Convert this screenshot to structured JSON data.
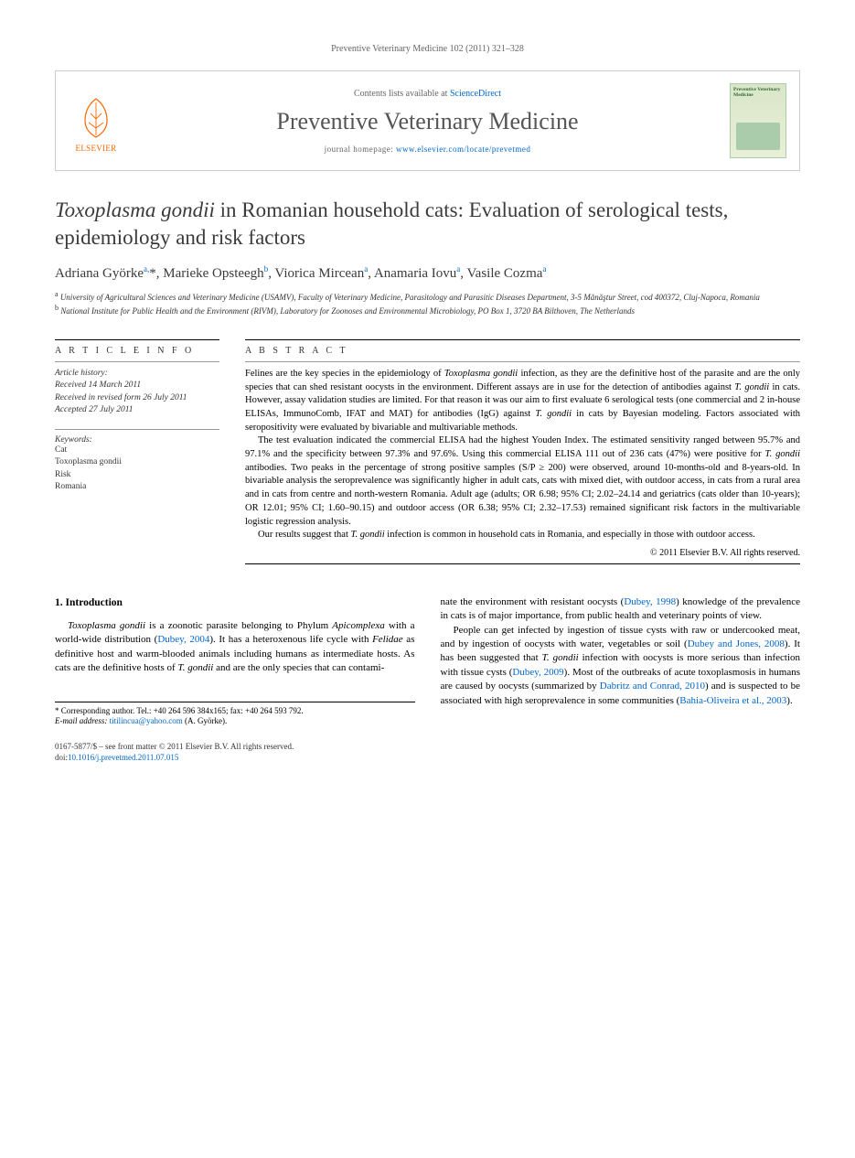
{
  "running_head": "Preventive Veterinary Medicine 102 (2011) 321–328",
  "header": {
    "contents_prefix": "Contents lists available at ",
    "contents_link": "ScienceDirect",
    "journal_name": "Preventive Veterinary Medicine",
    "homepage_prefix": "journal homepage: ",
    "homepage_link": "www.elsevier.com/locate/prevetmed",
    "publisher": "ELSEVIER",
    "cover_title": "Preventive Veterinary Medicine"
  },
  "article": {
    "title_html": "<em>Toxoplasma gondii</em> in Romanian household cats: Evaluation of serological tests, epidemiology and risk factors",
    "authors_html": "Adriana Györke<sup>a,</sup>*, Marieke Opsteegh<sup>b</sup>, Viorica Mircean<sup>a</sup>, Anamaria Iovu<sup>a</sup>, Vasile Cozma<sup>a</sup>",
    "affiliations": [
      "<sup>a</sup> University of Agricultural Sciences and Veterinary Medicine (USAMV), Faculty of Veterinary Medicine, Parasitology and Parasitic Diseases Department, 3-5 Mănăştur Street, cod 400372, Cluj-Napoca, Romania",
      "<sup>b</sup> National Institute for Public Health and the Environment (RIVM), Laboratory for Zoonoses and Environmental Microbiology, PO Box 1, 3720 BA Bilthoven, The Netherlands"
    ]
  },
  "info": {
    "section_head": "A R T I C L E   I N F O",
    "history_label": "Article history:",
    "received": "Received 14 March 2011",
    "revised": "Received in revised form 26 July 2011",
    "accepted": "Accepted 27 July 2011",
    "keywords_label": "Keywords:",
    "keywords": [
      "Cat",
      "Toxoplasma gondii",
      "Risk",
      "Romania"
    ]
  },
  "abstract": {
    "section_head": "A B S T R A C T",
    "paragraphs": [
      "Felines are the key species in the epidemiology of <em>Toxoplasma gondii</em> infection, as they are the definitive host of the parasite and are the only species that can shed resistant oocysts in the environment. Different assays are in use for the detection of antibodies against <em>T. gondii</em> in cats. However, assay validation studies are limited. For that reason it was our aim to first evaluate 6 serological tests (one commercial and 2 in-house ELISAs, ImmunoComb, IFAT and MAT) for antibodies (IgG) against <em>T. gondii</em> in cats by Bayesian modeling. Factors associated with seropositivity were evaluated by bivariable and multivariable methods.",
      "The test evaluation indicated the commercial ELISA had the highest Youden Index. The estimated sensitivity ranged between 95.7% and 97.1% and the specificity between 97.3% and 97.6%. Using this commercial ELISA 111 out of 236 cats (47%) were positive for <em>T. gondii</em> antibodies. Two peaks in the percentage of strong positive samples (S/P ≥ 200) were observed, around 10-months-old and 8-years-old. In bivariable analysis the seroprevalence was significantly higher in adult cats, cats with mixed diet, with outdoor access, in cats from a rural area and in cats from centre and north-western Romania. Adult age (adults; OR 6.98; 95% CI; 2.02–24.14 and geriatrics (cats older than 10-years); OR 12.01; 95% CI; 1.60–90.15) and outdoor access (OR 6.38; 95% CI; 2.32–17.53) remained significant risk factors in the multivariable logistic regression analysis.",
      "Our results suggest that <em>T. gondii</em> infection is common in household cats in Romania, and especially in those with outdoor access."
    ],
    "copyright": "© 2011 Elsevier B.V. All rights reserved."
  },
  "body": {
    "section_number": "1.",
    "section_title": "Introduction",
    "col1": [
      "<em>Toxoplasma gondii</em> is a zoonotic parasite belonging to Phylum <em>Apicomplexa</em> with a world-wide distribution (<a href='#'>Dubey, 2004</a>). It has a heteroxenous life cycle with <em>Felidae</em> as definitive host and warm-blooded animals including humans as intermediate hosts. As cats are the definitive hosts of <em>T. gondii</em> and are the only species that can contami-"
    ],
    "col2": [
      "nate the environment with resistant oocysts (<a href='#'>Dubey, 1998</a>) knowledge of the prevalence in cats is of major importance, from public health and veterinary points of view.",
      "People can get infected by ingestion of tissue cysts with raw or undercooked meat, and by ingestion of oocysts with water, vegetables or soil (<a href='#'>Dubey and Jones, 2008</a>). It has been suggested that <em>T. gondii</em> infection with oocysts is more serious than infection with tissue cysts (<a href='#'>Dubey, 2009</a>). Most of the outbreaks of acute toxoplasmosis in humans are caused by oocysts (summarized by <a href='#'>Dabritz and Conrad, 2010</a>) and is suspected to be associated with high seroprevalence in some communities (<a href='#'>Bahia-Oliveira et al., 2003</a>)."
    ]
  },
  "footnotes": {
    "corresponding": "* Corresponding author. Tel.: +40 264 596 384x165; fax: +40 264 593 792.",
    "email_label": "E-mail address: ",
    "email": "titilincua@yahoo.com",
    "email_suffix": " (A. Györke)."
  },
  "footer": {
    "line1": "0167-5877/$ – see front matter © 2011 Elsevier B.V. All rights reserved.",
    "doi_prefix": "doi:",
    "doi": "10.1016/j.prevetmed.2011.07.015"
  },
  "colors": {
    "link": "#0066cc",
    "publisher": "#ff6600",
    "text": "#000000",
    "muted": "#666666"
  }
}
